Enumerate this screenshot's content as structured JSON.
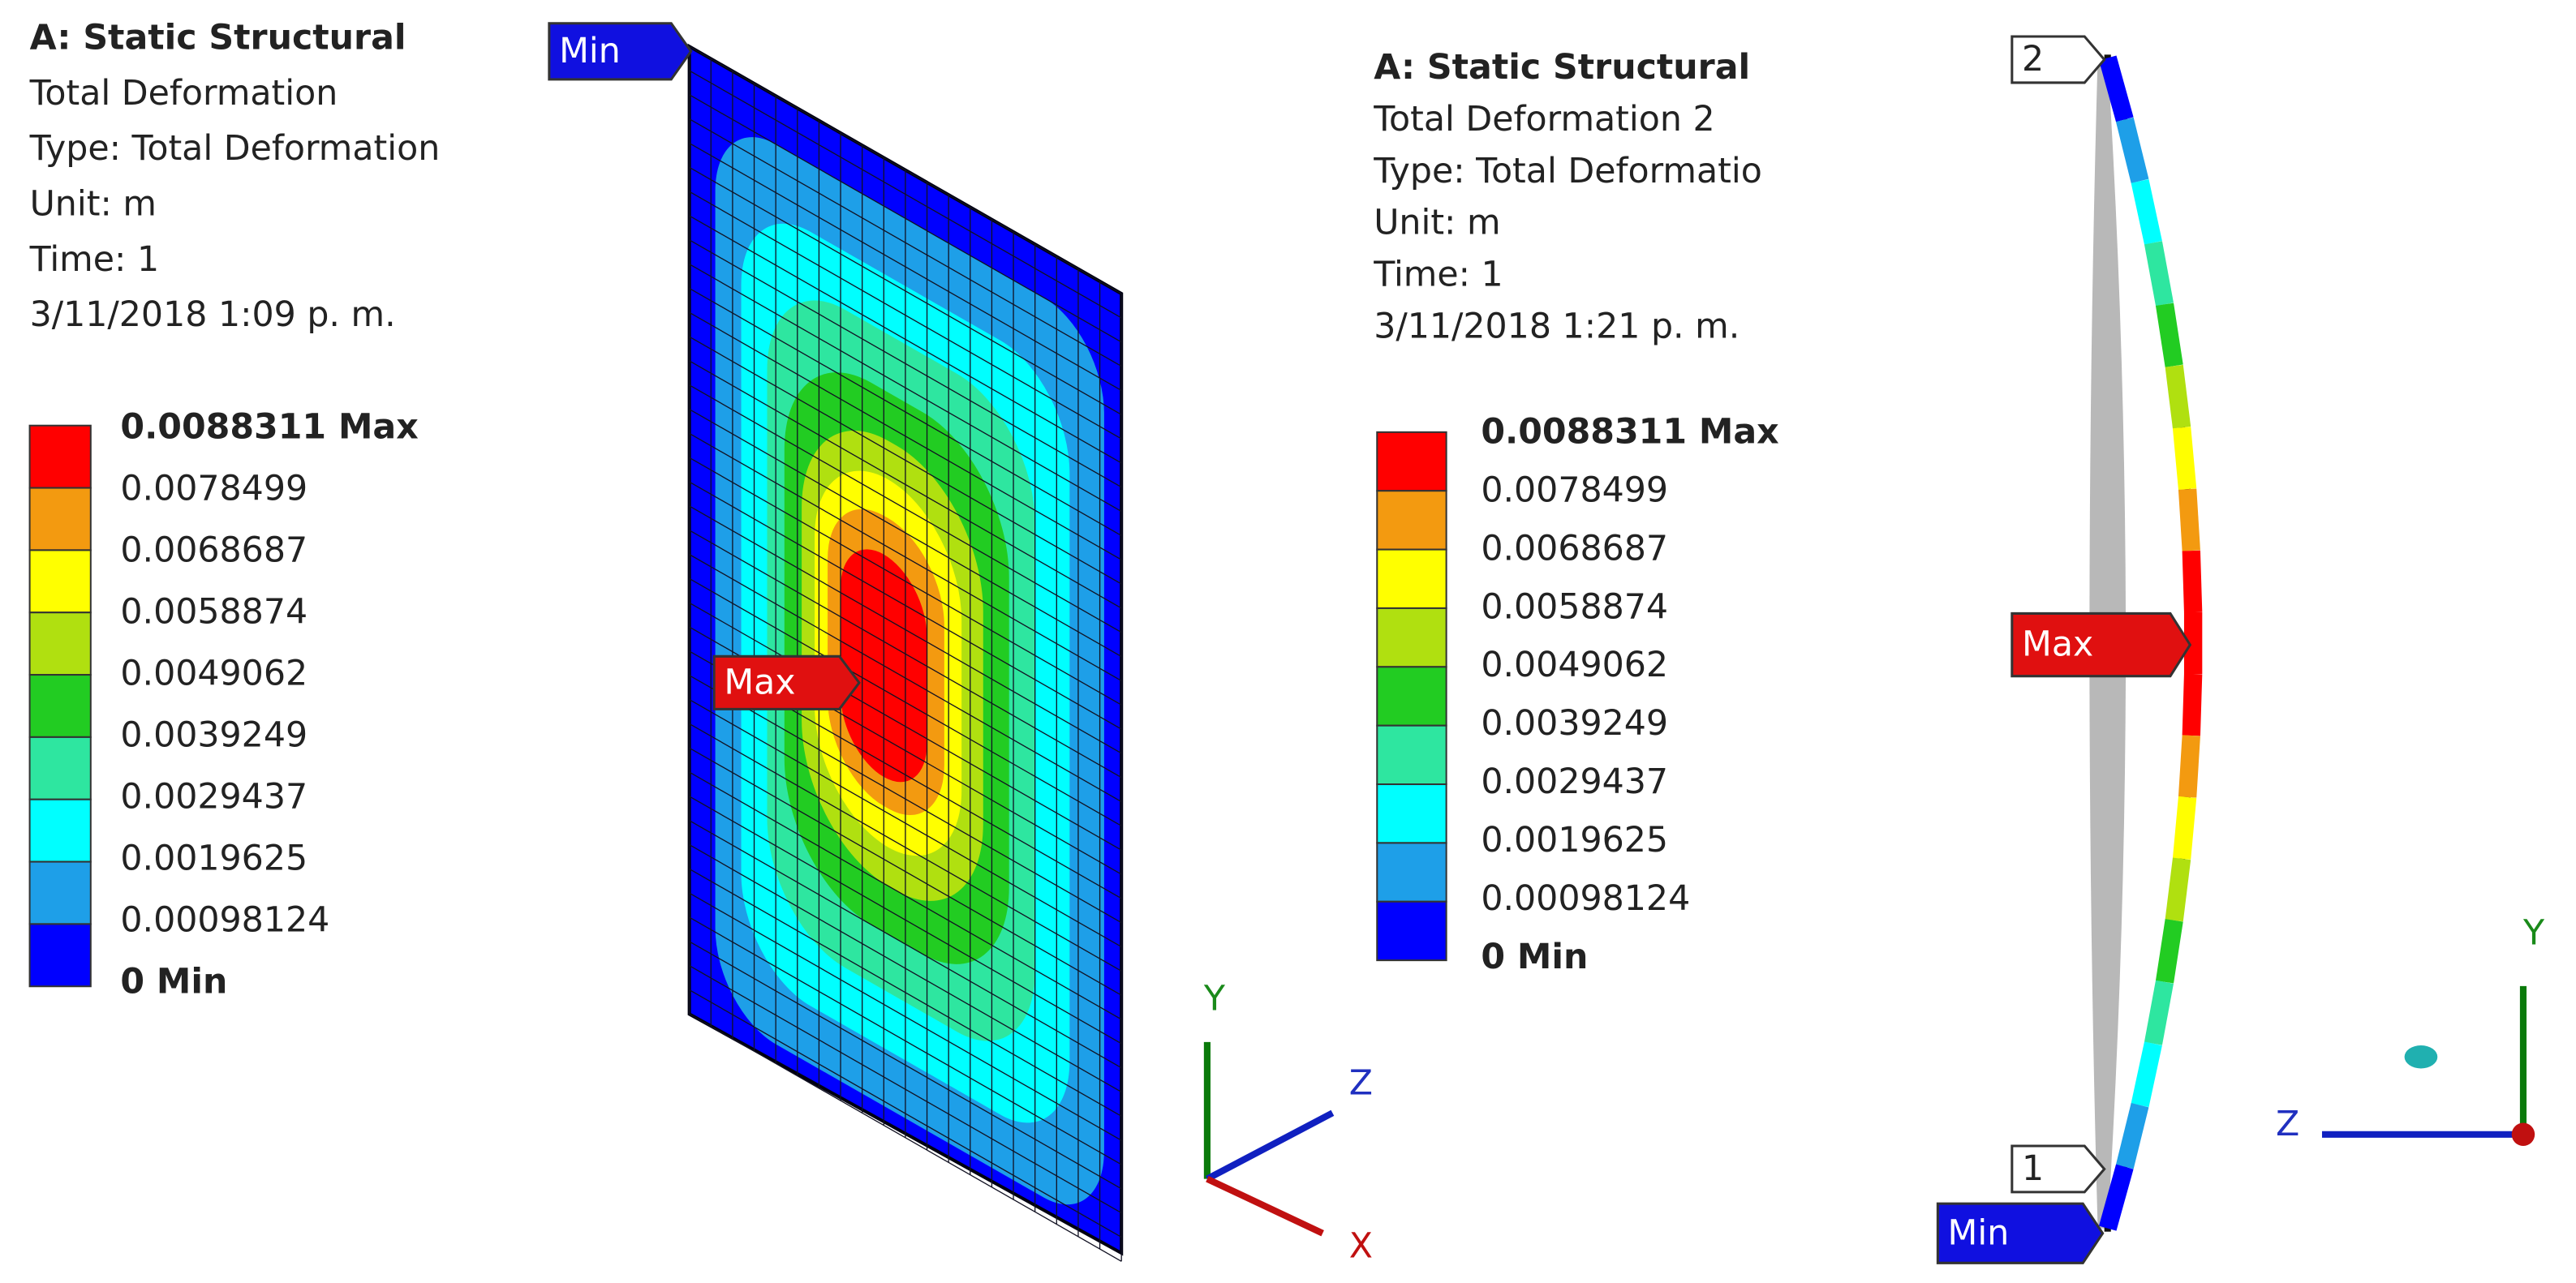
{
  "panels": [
    {
      "header": [
        "A: Static Structural",
        "Total Deformation",
        "Type: Total Deformation",
        "Unit: m",
        "Time: 1",
        "3/11/2018 1:09 p. m."
      ],
      "legend": {
        "labels": [
          "0.0088311 Max",
          "0.0078499",
          "0.0068687",
          "0.0058874",
          "0.0049062",
          "0.0039249",
          "0.0029437",
          "0.0019625",
          "0.00098124",
          "0 Min"
        ],
        "colors": [
          "#ff0000",
          "#f39a10",
          "#ffff00",
          "#b0e010",
          "#22cc22",
          "#2ee6a0",
          "#00ffff",
          "#1e9fe8",
          "#0000ff"
        ]
      },
      "probes": [
        "Min",
        "Max"
      ],
      "axes": [
        "Y",
        "Z",
        "X"
      ]
    },
    {
      "header": [
        "A: Static Structural",
        "Total Deformation 2",
        "Type: Total Deformatio",
        "Unit: m",
        "Time: 1",
        "3/11/2018 1:21 p. m."
      ],
      "legend": {
        "labels": [
          "0.0088311 Max",
          "0.0078499",
          "0.0068687",
          "0.0058874",
          "0.0049062",
          "0.0039249",
          "0.0029437",
          "0.0019625",
          "0.00098124",
          "0 Min"
        ],
        "colors": [
          "#ff0000",
          "#f39a10",
          "#ffff00",
          "#b0e010",
          "#22cc22",
          "#2ee6a0",
          "#00ffff",
          "#1e9fe8",
          "#0000ff"
        ]
      },
      "probes": [
        "2",
        "Max",
        "1",
        "Min"
      ],
      "axes": [
        "Y",
        "Z"
      ]
    }
  ]
}
